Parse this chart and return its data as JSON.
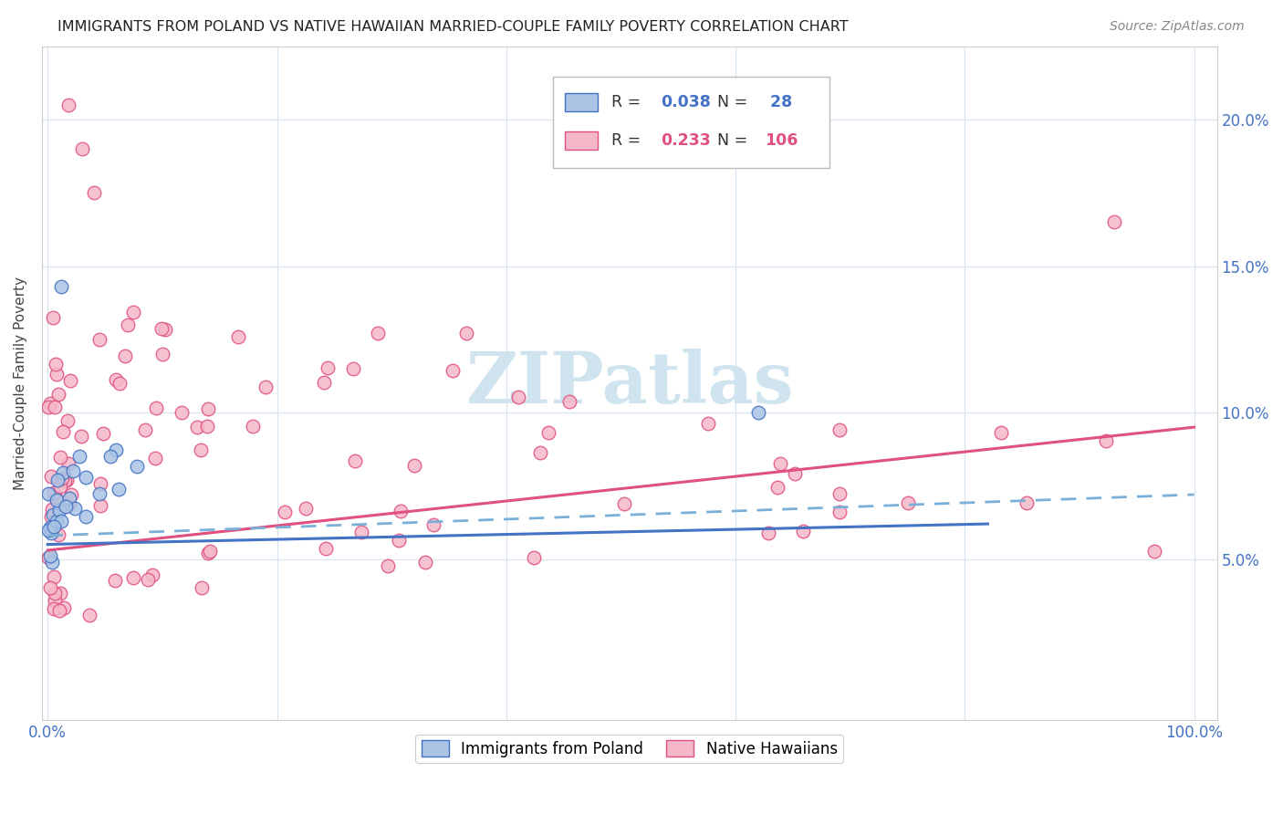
{
  "title": "IMMIGRANTS FROM POLAND VS NATIVE HAWAIIAN MARRIED-COUPLE FAMILY POVERTY CORRELATION CHART",
  "source": "Source: ZipAtlas.com",
  "ylabel": "Married-Couple Family Poverty",
  "xlim": [
    -0.005,
    1.02
  ],
  "ylim": [
    -0.005,
    0.225
  ],
  "xtick_positions": [
    0.0,
    0.2,
    0.4,
    0.6,
    0.8,
    1.0
  ],
  "xticklabels": [
    "0.0%",
    "",
    "",
    "",
    "",
    "100.0%"
  ],
  "ytick_positions": [
    0.05,
    0.1,
    0.15,
    0.2
  ],
  "yticklabels": [
    "5.0%",
    "10.0%",
    "15.0%",
    "20.0%"
  ],
  "color_poland_fill": "#aac4e4",
  "color_poland_edge": "#4472c4",
  "color_hawaii_fill": "#f5b8c8",
  "color_hawaii_edge": "#e05080",
  "color_poland_trend_solid": "#4472c4",
  "color_poland_trend_dashed": "#7ab0d8",
  "color_hawaii_trend": "#e05080",
  "watermark_color": "#d0e4f0",
  "tick_color": "#4472c4",
  "legend_box_edge": "#bbbbbb",
  "r1": "0.038",
  "n1": "28",
  "r2": "0.233",
  "n2": "106",
  "r1_color": "#4472c4",
  "n1_color": "#4472c4",
  "r2_color": "#e05080",
  "n2_color": "#e05080"
}
